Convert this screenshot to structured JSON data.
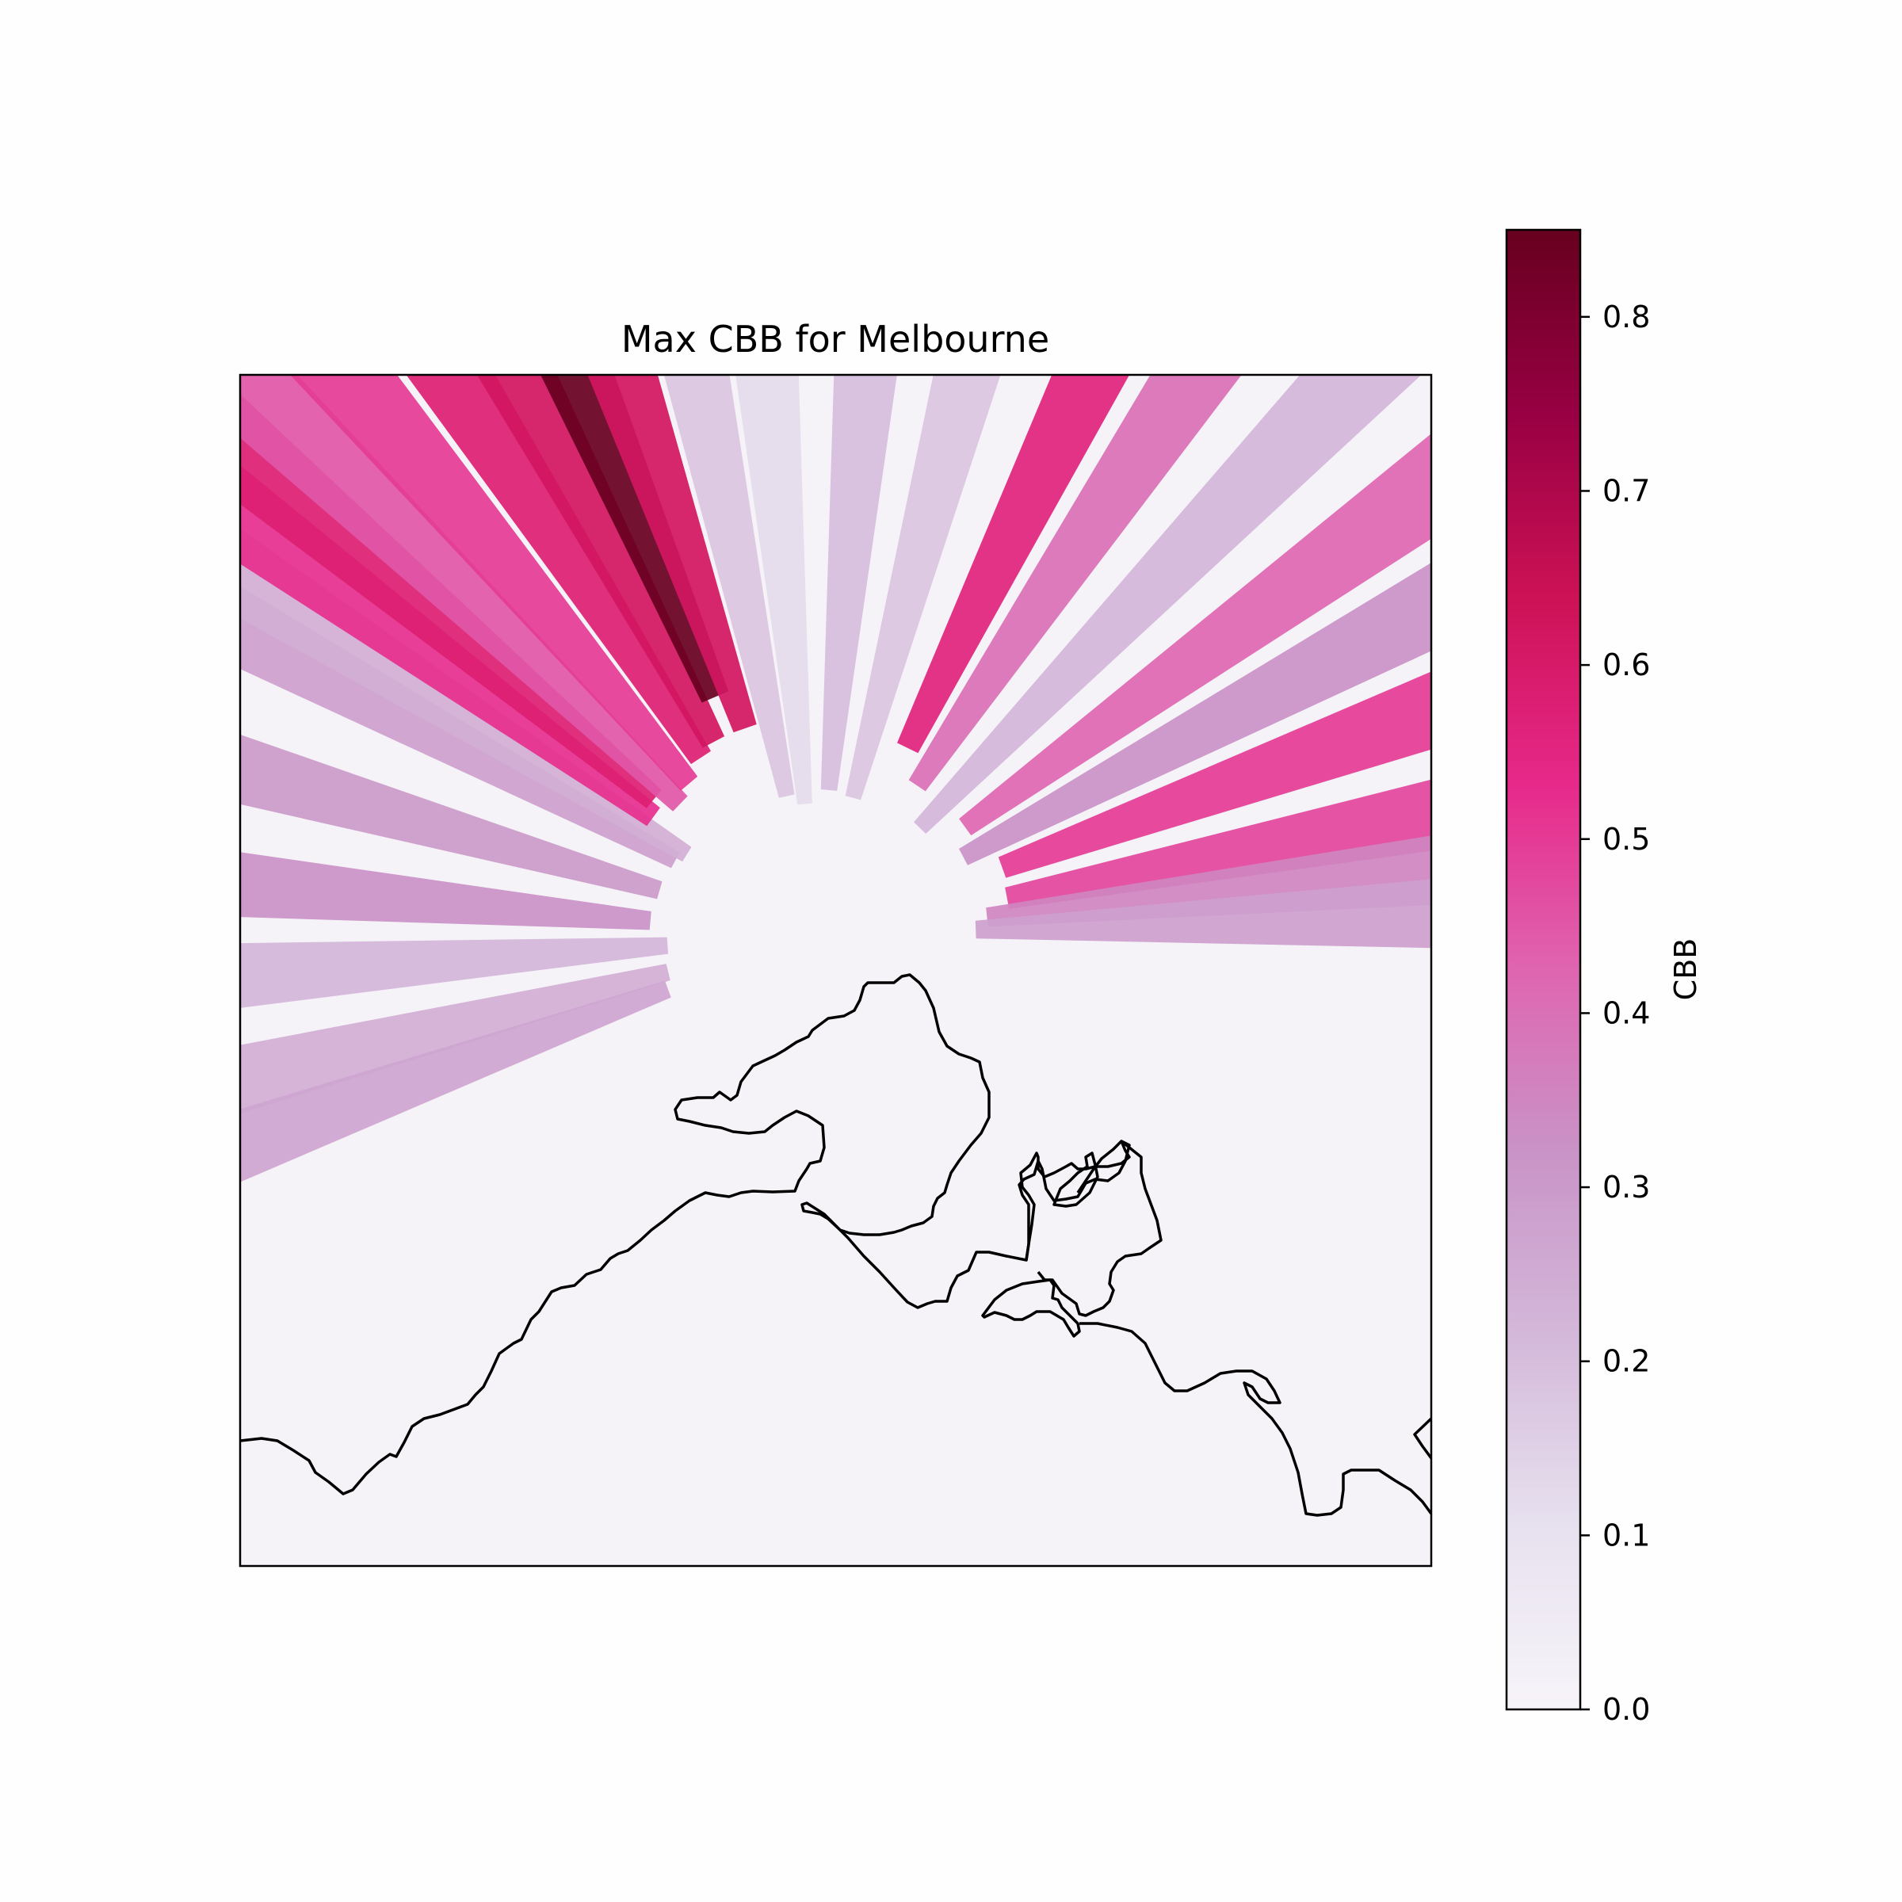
{
  "title": "Max CBB for Melbourne",
  "colorbar": {
    "label": "CBB",
    "min": 0.0,
    "max": 0.85,
    "ticks": [
      {
        "value": 0.0,
        "label": "0.0"
      },
      {
        "value": 0.1,
        "label": "0.1"
      },
      {
        "value": 0.2,
        "label": "0.2"
      },
      {
        "value": 0.3,
        "label": "0.3"
      },
      {
        "value": 0.4,
        "label": "0.4"
      },
      {
        "value": 0.5,
        "label": "0.5"
      },
      {
        "value": 0.6,
        "label": "0.6"
      },
      {
        "value": 0.7,
        "label": "0.7"
      },
      {
        "value": 0.8,
        "label": "0.8"
      }
    ],
    "colormap": "PuRd",
    "colors": [
      "#f7f4f9",
      "#e7e1ef",
      "#d4b9da",
      "#c994c7",
      "#df65b0",
      "#e7298a",
      "#ce1256",
      "#980043",
      "#67001f"
    ]
  },
  "chart_data": {
    "type": "heatmap",
    "title": "Max CBB for Melbourne",
    "value_label": "CBB",
    "value_range": [
      0.0,
      0.85
    ],
    "pattern": "radial beam blockage from radar, strongest toward north-northwest",
    "beam_sectors": [
      {
        "bearing_deg": -62,
        "value": 0.28
      },
      {
        "bearing_deg": -58,
        "value": 0.24
      },
      {
        "bearing_deg": -74,
        "value": 0.3
      },
      {
        "bearing_deg": -85,
        "value": 0.32
      },
      {
        "bearing_deg": -94,
        "value": 0.22
      },
      {
        "bearing_deg": -104,
        "value": 0.24
      },
      {
        "bearing_deg": -110,
        "value": 0.27
      },
      {
        "bearing_deg": -54,
        "value": 0.52
      },
      {
        "bearing_deg": -50,
        "value": 0.58
      },
      {
        "bearing_deg": -46,
        "value": 0.45
      },
      {
        "bearing_deg": -40,
        "value": 0.5
      },
      {
        "bearing_deg": -33,
        "value": 0.58
      },
      {
        "bearing_deg": -28,
        "value": 0.62
      },
      {
        "bearing_deg": -23,
        "value": 0.85
      },
      {
        "bearing_deg": -19,
        "value": 0.62
      },
      {
        "bearing_deg": -12,
        "value": 0.18
      },
      {
        "bearing_deg": -5,
        "value": 0.12
      },
      {
        "bearing_deg": 5,
        "value": 0.2
      },
      {
        "bearing_deg": 15,
        "value": 0.18
      },
      {
        "bearing_deg": 26,
        "value": 0.56
      },
      {
        "bearing_deg": 34,
        "value": 0.4
      },
      {
        "bearing_deg": 44,
        "value": 0.22
      },
      {
        "bearing_deg": 54,
        "value": 0.42
      },
      {
        "bearing_deg": 62,
        "value": 0.32
      },
      {
        "bearing_deg": 70,
        "value": 0.5
      },
      {
        "bearing_deg": 79,
        "value": 0.48
      },
      {
        "bearing_deg": 84,
        "value": 0.35
      },
      {
        "bearing_deg": 88,
        "value": 0.28
      }
    ]
  }
}
